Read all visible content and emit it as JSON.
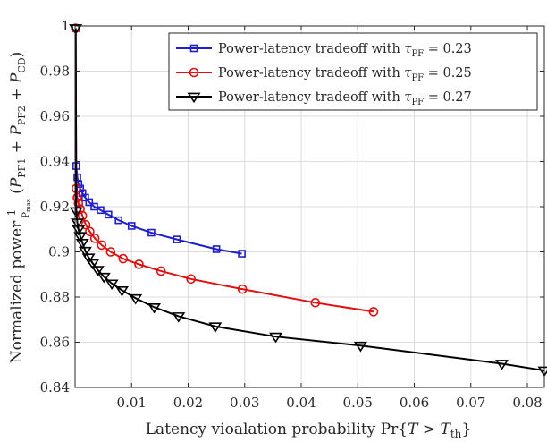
{
  "chart_data": {
    "type": "line",
    "xlabel": "Latency vioalation probability Pr{T > T_th}",
    "ylabel": "Normalized power (1/P_max)(P_PF1 + P_PF2 + P_CD)",
    "xlim": [
      0,
      0.083
    ],
    "ylim": [
      0.84,
      1.0
    ],
    "grid": true,
    "legend_position": "top-right",
    "x_ticks": [
      0.01,
      0.02,
      0.03,
      0.04,
      0.05,
      0.06,
      0.07,
      0.08
    ],
    "x_tick_labels": [
      "0.01",
      "0.02",
      "0.03",
      "0.04",
      "0.05",
      "0.06",
      "0.07",
      "0.08"
    ],
    "y_ticks": [
      0.84,
      0.86,
      0.88,
      0.9,
      0.92,
      0.94,
      0.96,
      0.98,
      1.0
    ],
    "y_tick_labels": [
      "0.84",
      "0.86",
      "0.88",
      "0.9",
      "0.92",
      "0.94",
      "0.96",
      "0.98",
      "1"
    ],
    "series": [
      {
        "name": "Power-latency tradeoff with τ_PF = 0.23",
        "color": "#1f1fcc",
        "marker": "square",
        "x": [
          0.0001,
          0.0002,
          0.0004,
          0.0006,
          0.0009,
          0.0013,
          0.0018,
          0.0025,
          0.0034,
          0.0045,
          0.0059,
          0.0077,
          0.01,
          0.0135,
          0.018,
          0.025,
          0.0295
        ],
        "y": [
          0.999,
          0.938,
          0.933,
          0.93,
          0.928,
          0.926,
          0.924,
          0.922,
          0.92,
          0.9185,
          0.9165,
          0.914,
          0.9115,
          0.9085,
          0.9055,
          0.9012,
          0.8992
        ]
      },
      {
        "name": "Power-latency tradeoff with τ_PF = 0.25",
        "color": "#e01010",
        "marker": "circle",
        "x": [
          0.0001,
          0.0002,
          0.0004,
          0.0006,
          0.0009,
          0.0013,
          0.0019,
          0.0026,
          0.0035,
          0.0047,
          0.0063,
          0.0085,
          0.0113,
          0.0152,
          0.0205,
          0.0296,
          0.0425,
          0.0528
        ],
        "y": [
          0.999,
          0.928,
          0.924,
          0.9215,
          0.919,
          0.916,
          0.912,
          0.909,
          0.906,
          0.903,
          0.9,
          0.897,
          0.8945,
          0.8915,
          0.888,
          0.8835,
          0.8775,
          0.8735
        ]
      },
      {
        "name": "Power-latency tradeoff with τ_PF = 0.27",
        "color": "#000000",
        "marker": "triangle-down",
        "x": [
          0.0001,
          0.0002,
          0.0004,
          0.0006,
          0.0009,
          0.0013,
          0.0018,
          0.0024,
          0.0031,
          0.004,
          0.0051,
          0.0065,
          0.0083,
          0.0107,
          0.014,
          0.0183,
          0.0248,
          0.0355,
          0.0505,
          0.0755,
          0.083
        ],
        "y": [
          0.999,
          0.918,
          0.913,
          0.91,
          0.907,
          0.904,
          0.9005,
          0.8975,
          0.895,
          0.892,
          0.889,
          0.886,
          0.883,
          0.8795,
          0.8755,
          0.8715,
          0.867,
          0.8625,
          0.8585,
          0.8505,
          0.8475
        ]
      }
    ]
  }
}
